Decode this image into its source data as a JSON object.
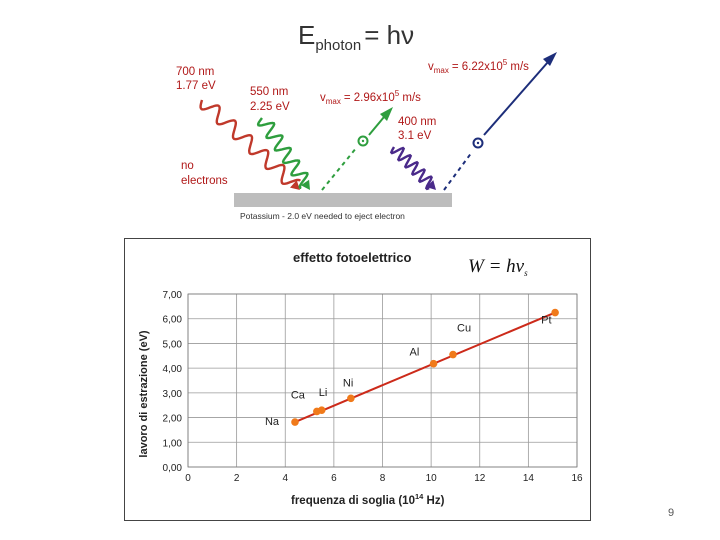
{
  "photo": {
    "title_main": "E",
    "title_sub": "photon",
    "title_rest": "= hν",
    "red_wl": "700 nm",
    "red_en": "1.77 eV",
    "no_electrons_1": "no",
    "no_electrons_2": "electrons",
    "green_wl": "550 nm",
    "green_en": "2.25 eV",
    "green_v_pre": "v",
    "green_v_sub": "max",
    "green_v_val": "= 2.96x10",
    "green_v_exp": "5",
    "green_v_unit": " m/s",
    "violet_wl": "400 nm",
    "violet_en": "3.1 eV",
    "violet_v_pre": "v",
    "violet_v_sub": "max",
    "violet_v_val": "= 6.22x10",
    "violet_v_exp": "5",
    "violet_v_unit": " m/s",
    "plate_caption": "Potassium - 2.0 eV needed to eject electron",
    "colors": {
      "red": "#c0392b",
      "green": "#2e9e3e",
      "violet": "#4a2a8a",
      "blue": "#1d2e7a",
      "plate": "#bdbdbd"
    }
  },
  "chart_data": {
    "type": "line",
    "title": "effetto fotoelettrico",
    "equation": "W = hν",
    "equation_sub": "s",
    "xlabel_pre": "frequenza di soglia (10",
    "xlabel_exp": "14",
    "xlabel_post": " Hz)",
    "ylabel": "lavoro di estrazione (eV)",
    "xlim": [
      0,
      16
    ],
    "ylim": [
      0,
      7
    ],
    "xticks": [
      0,
      2,
      4,
      6,
      8,
      10,
      12,
      14,
      16
    ],
    "yticks": [
      "0,00",
      "1,00",
      "2,00",
      "3,00",
      "4,00",
      "5,00",
      "6,00",
      "7,00"
    ],
    "grid": true,
    "point_color": "#f07a1a",
    "line_color": "#cc2a1a",
    "points": [
      {
        "label": "Na",
        "x": 4.4,
        "y": 1.82
      },
      {
        "label": "Ca",
        "x": 5.3,
        "y": 2.25
      },
      {
        "label": "Li",
        "x": 5.5,
        "y": 2.3
      },
      {
        "label": "Ni",
        "x": 6.7,
        "y": 2.78
      },
      {
        "label": "Al",
        "x": 10.1,
        "y": 4.18
      },
      {
        "label": "Cu",
        "x": 10.9,
        "y": 4.55
      },
      {
        "label": "Pt",
        "x": 15.1,
        "y": 6.25
      }
    ]
  },
  "page": {
    "number": "9"
  }
}
